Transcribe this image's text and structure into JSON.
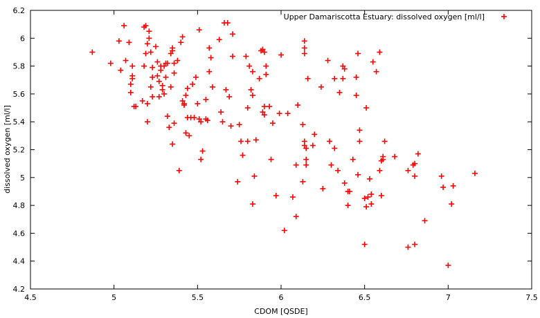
{
  "chart_data": {
    "type": "scatter",
    "title": "",
    "xlabel": "CDOM [QSDE]",
    "ylabel": "dissolved oxygen [ml/l]",
    "xlim": [
      4.5,
      7.5
    ],
    "ylim": [
      4.2,
      6.2
    ],
    "xticks": [
      "4.5",
      "5",
      "5.5",
      "6",
      "6.5",
      "7",
      "7.5"
    ],
    "yticks": [
      "4.2",
      "4.4",
      "4.6",
      "4.8",
      "5",
      "5.2",
      "5.4",
      "5.6",
      "5.8",
      "6",
      "6.2"
    ],
    "grid": false,
    "legend_position": "top-right",
    "marker": "plus",
    "color": "#ff0000",
    "series": [
      {
        "name": "Upper Damariscotta Estuary: dissolved oxygen [ml/l]",
        "points": [
          [
            4.87,
            5.9
          ],
          [
            4.98,
            5.82
          ],
          [
            5.03,
            5.98
          ],
          [
            5.04,
            5.77
          ],
          [
            5.06,
            6.09
          ],
          [
            5.07,
            5.84
          ],
          [
            5.09,
            5.97
          ],
          [
            5.1,
            5.61
          ],
          [
            5.1,
            5.67
          ],
          [
            5.11,
            5.8
          ],
          [
            5.11,
            5.73
          ],
          [
            5.11,
            5.71
          ],
          [
            5.12,
            5.51
          ],
          [
            5.13,
            5.51
          ],
          [
            5.17,
            5.55
          ],
          [
            5.18,
            5.8
          ],
          [
            5.18,
            6.08
          ],
          [
            5.19,
            6.09
          ],
          [
            5.19,
            5.89
          ],
          [
            5.2,
            5.96
          ],
          [
            5.2,
            5.53
          ],
          [
            5.2,
            5.4
          ],
          [
            5.21,
            6.05
          ],
          [
            5.21,
            6.0
          ],
          [
            5.22,
            5.9
          ],
          [
            5.22,
            5.65
          ],
          [
            5.23,
            5.72
          ],
          [
            5.23,
            5.58
          ],
          [
            5.23,
            5.79
          ],
          [
            5.25,
            5.94
          ],
          [
            5.26,
            5.83
          ],
          [
            5.26,
            5.73
          ],
          [
            5.27,
            5.58
          ],
          [
            5.27,
            5.69
          ],
          [
            5.28,
            5.77
          ],
          [
            5.28,
            5.8
          ],
          [
            5.29,
            5.63
          ],
          [
            5.29,
            5.66
          ],
          [
            5.3,
            5.6
          ],
          [
            5.3,
            5.8
          ],
          [
            5.31,
            5.72
          ],
          [
            5.31,
            5.82
          ],
          [
            5.32,
            5.82
          ],
          [
            5.32,
            5.44
          ],
          [
            5.33,
            5.36
          ],
          [
            5.34,
            5.89
          ],
          [
            5.34,
            5.65
          ],
          [
            5.35,
            5.91
          ],
          [
            5.35,
            5.93
          ],
          [
            5.35,
            5.24
          ],
          [
            5.36,
            5.39
          ],
          [
            5.36,
            5.75
          ],
          [
            5.36,
            5.82
          ],
          [
            5.38,
            5.84
          ],
          [
            5.39,
            5.05
          ],
          [
            5.4,
            5.97
          ],
          [
            5.41,
            5.55
          ],
          [
            5.41,
            6.01
          ],
          [
            5.42,
            5.53
          ],
          [
            5.42,
            5.52
          ],
          [
            5.43,
            5.59
          ],
          [
            5.43,
            5.32
          ],
          [
            5.44,
            5.43
          ],
          [
            5.44,
            5.64
          ],
          [
            5.45,
            5.3
          ],
          [
            5.46,
            5.43
          ],
          [
            5.47,
            5.67
          ],
          [
            5.48,
            5.43
          ],
          [
            5.49,
            5.72
          ],
          [
            5.5,
            5.53
          ],
          [
            5.51,
            5.42
          ],
          [
            5.51,
            6.06
          ],
          [
            5.52,
            5.13
          ],
          [
            5.52,
            5.4
          ],
          [
            5.53,
            5.19
          ],
          [
            5.55,
            5.56
          ],
          [
            5.55,
            5.42
          ],
          [
            5.56,
            5.41
          ],
          [
            5.57,
            5.93
          ],
          [
            5.57,
            5.76
          ],
          [
            5.58,
            5.86
          ],
          [
            5.59,
            5.65
          ],
          [
            5.63,
            5.99
          ],
          [
            5.64,
            5.47
          ],
          [
            5.65,
            5.4
          ],
          [
            5.66,
            6.11
          ],
          [
            5.67,
            5.63
          ],
          [
            5.68,
            6.11
          ],
          [
            5.69,
            5.58
          ],
          [
            5.7,
            5.37
          ],
          [
            5.71,
            6.03
          ],
          [
            5.71,
            5.87
          ],
          [
            5.74,
            4.97
          ],
          [
            5.75,
            5.38
          ],
          [
            5.76,
            5.26
          ],
          [
            5.77,
            5.16
          ],
          [
            5.79,
            5.87
          ],
          [
            5.8,
            5.5
          ],
          [
            5.8,
            5.26
          ],
          [
            5.81,
            5.8
          ],
          [
            5.82,
            5.63
          ],
          [
            5.83,
            5.76
          ],
          [
            5.83,
            5.59
          ],
          [
            5.83,
            4.81
          ],
          [
            5.84,
            5.01
          ],
          [
            5.85,
            5.27
          ],
          [
            5.87,
            5.71
          ],
          [
            5.88,
            5.91
          ],
          [
            5.89,
            5.47
          ],
          [
            5.89,
            5.92
          ],
          [
            5.9,
            5.51
          ],
          [
            5.9,
            5.45
          ],
          [
            5.9,
            5.9
          ],
          [
            5.91,
            5.8
          ],
          [
            5.91,
            5.74
          ],
          [
            5.93,
            5.51
          ],
          [
            5.94,
            5.13
          ],
          [
            5.95,
            5.39
          ],
          [
            5.97,
            4.87
          ],
          [
            5.99,
            5.46
          ],
          [
            6.0,
            5.88
          ],
          [
            6.02,
            4.62
          ],
          [
            6.04,
            5.46
          ],
          [
            6.07,
            4.86
          ],
          [
            6.09,
            4.72
          ],
          [
            6.09,
            5.09
          ],
          [
            6.1,
            5.52
          ],
          [
            6.13,
            4.97
          ],
          [
            6.13,
            5.38
          ],
          [
            6.14,
            5.98
          ],
          [
            6.14,
            5.93
          ],
          [
            6.14,
            5.89
          ],
          [
            6.14,
            5.26
          ],
          [
            6.14,
            5.23
          ],
          [
            6.15,
            5.21
          ],
          [
            6.15,
            5.13
          ],
          [
            6.15,
            5.09
          ],
          [
            6.16,
            5.71
          ],
          [
            6.19,
            5.23
          ],
          [
            6.2,
            5.31
          ],
          [
            6.24,
            5.65
          ],
          [
            6.25,
            4.92
          ],
          [
            6.28,
            5.84
          ],
          [
            6.29,
            5.26
          ],
          [
            6.3,
            5.09
          ],
          [
            6.32,
            5.71
          ],
          [
            6.32,
            5.21
          ],
          [
            6.34,
            5.05
          ],
          [
            6.35,
            5.61
          ],
          [
            6.37,
            5.71
          ],
          [
            6.37,
            5.8
          ],
          [
            6.38,
            4.96
          ],
          [
            6.38,
            5.78
          ],
          [
            6.4,
            4.9
          ],
          [
            6.4,
            4.8
          ],
          [
            6.41,
            4.9
          ],
          [
            6.43,
            5.13
          ],
          [
            6.45,
            5.59
          ],
          [
            6.45,
            5.72
          ],
          [
            6.46,
            5.89
          ],
          [
            6.47,
            5.34
          ],
          [
            6.47,
            5.26
          ],
          [
            6.46,
            5.02
          ],
          [
            6.5,
            4.85
          ],
          [
            6.5,
            4.52
          ],
          [
            6.51,
            5.5
          ],
          [
            6.51,
            4.79
          ],
          [
            6.52,
            4.86
          ],
          [
            6.53,
            4.99
          ],
          [
            6.54,
            4.81
          ],
          [
            6.54,
            4.88
          ],
          [
            6.55,
            5.83
          ],
          [
            6.57,
            5.76
          ],
          [
            6.59,
            5.9
          ],
          [
            6.59,
            5.05
          ],
          [
            6.6,
            5.12
          ],
          [
            6.6,
            4.87
          ],
          [
            6.61,
            5.13
          ],
          [
            6.61,
            5.15
          ],
          [
            6.62,
            5.26
          ],
          [
            6.68,
            5.15
          ],
          [
            6.76,
            4.5
          ],
          [
            6.76,
            5.05
          ],
          [
            6.79,
            5.09
          ],
          [
            6.8,
            5.1
          ],
          [
            6.8,
            5.01
          ],
          [
            6.8,
            4.52
          ],
          [
            6.82,
            5.17
          ],
          [
            6.86,
            4.69
          ],
          [
            6.96,
            5.01
          ],
          [
            6.97,
            4.93
          ],
          [
            7.0,
            4.37
          ],
          [
            7.02,
            4.81
          ],
          [
            7.03,
            4.94
          ],
          [
            7.16,
            5.03
          ]
        ]
      }
    ]
  }
}
